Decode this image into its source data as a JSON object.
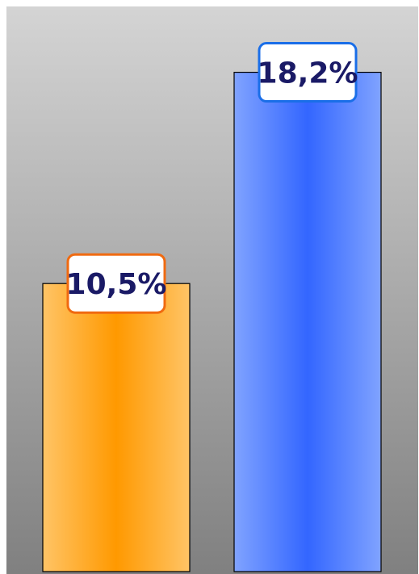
{
  "chart_data": {
    "type": "bar",
    "title": "",
    "xlabel": "",
    "ylabel": "",
    "categories": [
      "",
      ""
    ],
    "values": [
      10.5,
      18.2
    ],
    "value_labels": [
      "10,5%",
      "18,2%"
    ],
    "unit": "%",
    "ylim": [
      0,
      20.6
    ],
    "grid": false,
    "legend": "none",
    "colors": {
      "bars": [
        "#ff9900",
        "#3366ff"
      ],
      "bar_light": [
        "#ffc466",
        "#80a3ff"
      ],
      "label_borders": [
        "#f06a10",
        "#1a6ee8"
      ],
      "label_text": "#1a1a66",
      "background_top": "#d4d4d4",
      "background_bottom": "#808080"
    }
  }
}
